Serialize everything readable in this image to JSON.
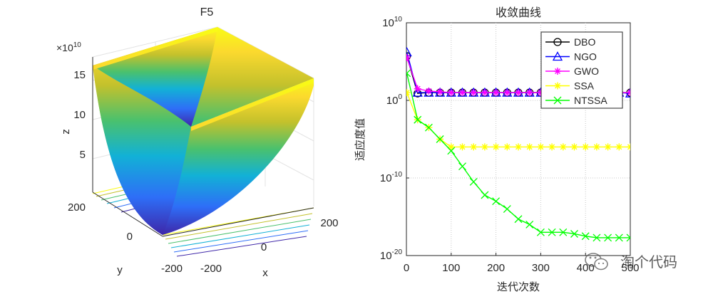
{
  "chart_data": [
    {
      "type": "surface3d",
      "title": "F5",
      "xlabel": "x",
      "ylabel": "y",
      "zlabel": "z",
      "x_ticks": [
        "-200",
        "0",
        "200"
      ],
      "y_ticks": [
        "200",
        "0",
        "-200"
      ],
      "z_ticks": [
        "5",
        "10",
        "15"
      ],
      "z_exponent_label": "×10",
      "z_exponent_power": "10",
      "xlim": [
        -200,
        200
      ],
      "ylim": [
        -200,
        200
      ],
      "zlim": [
        0,
        160000000000.0
      ],
      "colormap": [
        "#3e26a8",
        "#2e6ef7",
        "#12b1d6",
        "#4ac16d",
        "#c3c12c",
        "#fbd92e",
        "#f9fb15"
      ]
    },
    {
      "type": "line",
      "title": "收敛曲线",
      "xlabel": "迭代次数",
      "ylabel": "适应度值",
      "yscale": "log",
      "xlim": [
        0,
        500
      ],
      "ylim": [
        1e-20,
        10000000000.0
      ],
      "x_ticks": [
        "0",
        "100",
        "200",
        "300",
        "400",
        "500"
      ],
      "y_tick_base": "10",
      "y_tick_exponents": [
        "10",
        "0",
        "-10",
        "-20"
      ],
      "grid": "dotted",
      "legend": "top-right",
      "x": [
        1,
        25,
        50,
        75,
        100,
        125,
        150,
        175,
        200,
        225,
        250,
        275,
        300,
        325,
        350,
        375,
        400,
        425,
        450,
        475,
        500
      ],
      "series": [
        {
          "name": "DBO",
          "color": "#000000",
          "marker": "circle",
          "log10_values": [
            5.7,
            0.9,
            1.0,
            1.0,
            1.0,
            1.0,
            1.0,
            1.0,
            1.0,
            1.0,
            1.0,
            1.0,
            1.0,
            1.0,
            1.0,
            1.0,
            1.0,
            1.0,
            1.0,
            1.0,
            1.0
          ]
        },
        {
          "name": "NGO",
          "color": "#0000ff",
          "marker": "triangle",
          "log10_values": [
            6.2,
            1.0,
            1.0,
            1.0,
            1.0,
            1.0,
            1.0,
            1.0,
            1.0,
            1.0,
            1.0,
            1.0,
            1.0,
            1.0,
            1.0,
            1.0,
            1.0,
            1.0,
            1.0,
            1.0,
            0.9
          ]
        },
        {
          "name": "GWO",
          "color": "#ff00ff",
          "marker": "star",
          "log10_values": [
            5.5,
            1.5,
            1.2,
            1.1,
            1.0,
            1.0,
            1.0,
            1.0,
            1.0,
            1.0,
            1.0,
            1.0,
            1.0,
            1.0,
            1.0,
            1.0,
            1.0,
            1.0,
            1.0,
            1.0,
            1.0
          ]
        },
        {
          "name": "SSA",
          "color": "#ffff00",
          "marker": "star",
          "log10_values": [
            1.0,
            -2.5,
            -3.5,
            -5.0,
            -6.0,
            -6.0,
            -6.0,
            -6.0,
            -6.0,
            -6.0,
            -6.0,
            -6.0,
            -6.0,
            -6.0,
            -6.0,
            -6.0,
            -6.0,
            -6.0,
            -6.0,
            -6.0,
            -6.0
          ]
        },
        {
          "name": "NTSSA",
          "color": "#00ff00",
          "marker": "x",
          "log10_values": [
            3.5,
            -2.5,
            -3.5,
            -5.0,
            -6.5,
            -8.5,
            -10.5,
            -12.2,
            -13.0,
            -14.0,
            -15.3,
            -16.0,
            -17.0,
            -17.0,
            -17.0,
            -17.2,
            -17.5,
            -17.7,
            -17.7,
            -17.7,
            -17.7
          ]
        }
      ]
    }
  ],
  "watermark": {
    "text": "淘个代码",
    "icon": "wechat-icon"
  }
}
